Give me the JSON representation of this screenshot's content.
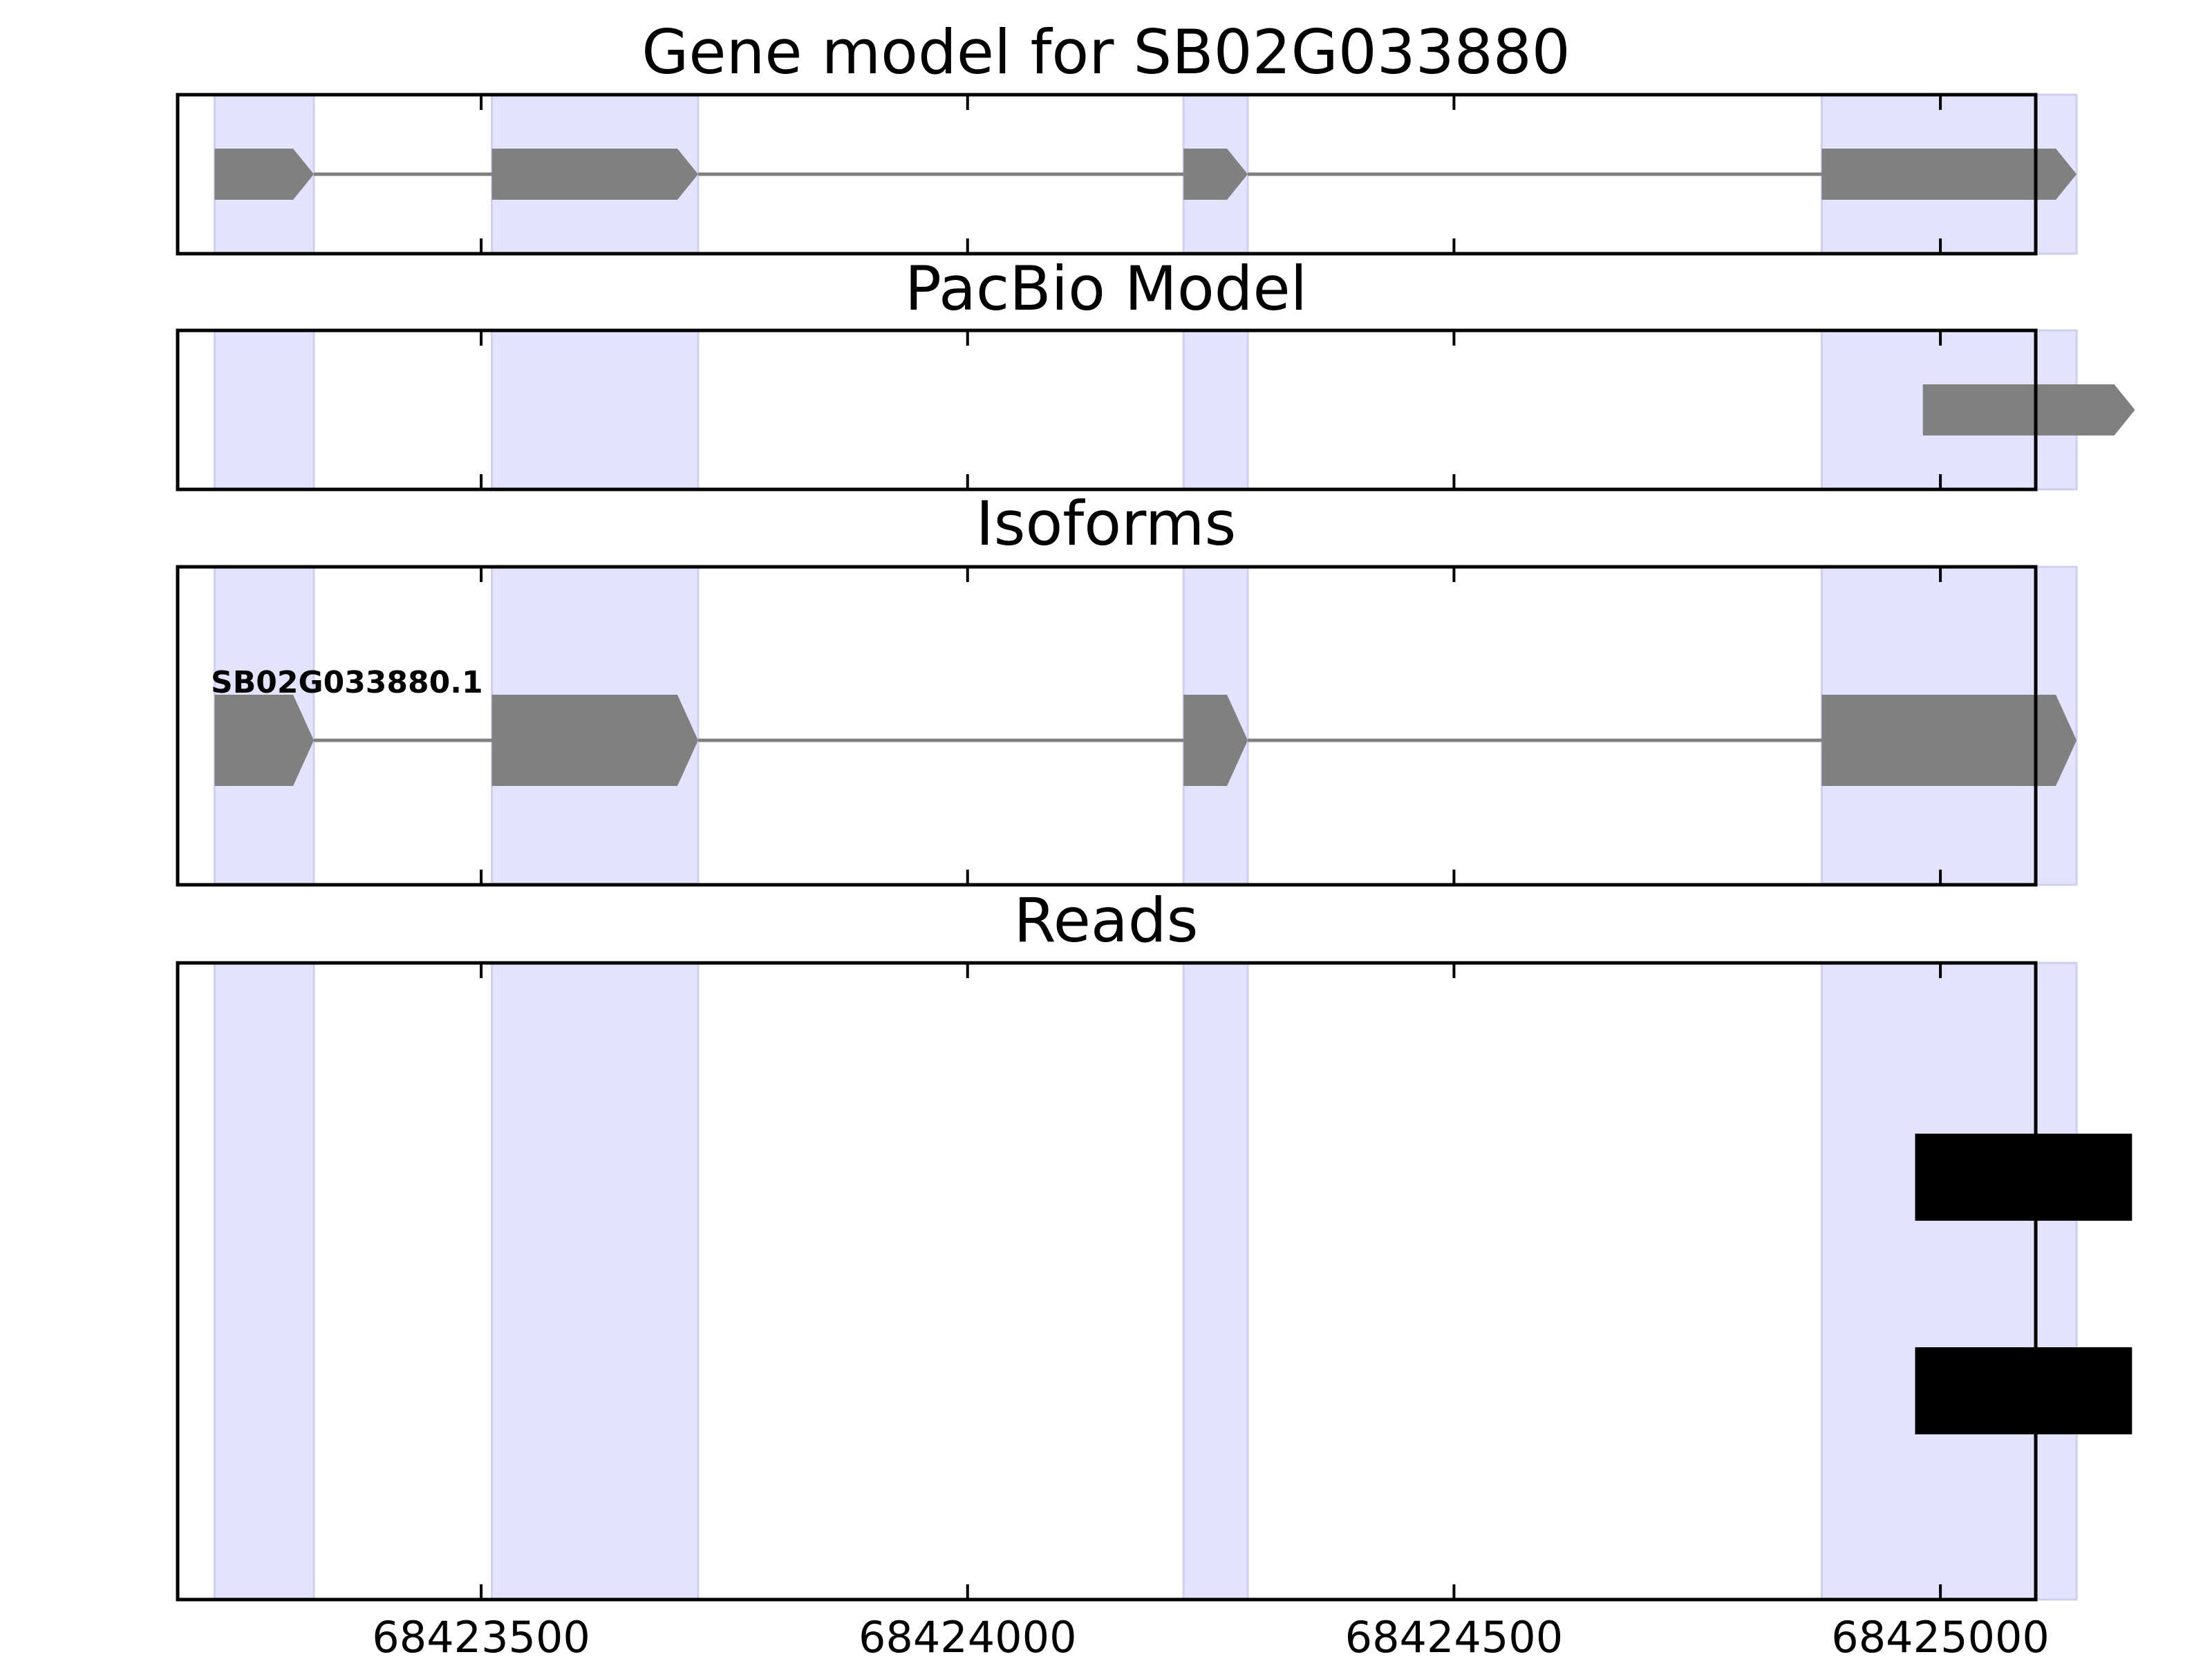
{
  "chart_data": {
    "type": "gene-track",
    "x_range": [
      68423188,
      68425098
    ],
    "x_ticks": [
      68423500,
      68424000,
      68424500,
      68425000
    ],
    "x_tick_labels": [
      "68423500",
      "68424000",
      "68424500",
      "68425000"
    ],
    "highlight_color": "#e3e3fd",
    "feature_color": "#808080",
    "read_color": "#000000",
    "highlight_regions": [
      [
        68423226,
        68423328
      ],
      [
        68423511,
        68423723
      ],
      [
        68424222,
        68424288
      ],
      [
        68424878,
        68425140
      ]
    ],
    "panels": [
      {
        "id": "gene-model",
        "title": "Gene model for SB02G033880",
        "features": [
          {
            "start": 68423226,
            "end": 68423328,
            "row": 0.5
          },
          {
            "start": 68423511,
            "end": 68423723,
            "row": 0.5
          },
          {
            "start": 68424222,
            "end": 68424288,
            "row": 0.5
          },
          {
            "start": 68424878,
            "end": 68425140,
            "row": 0.5
          }
        ],
        "strand": "+"
      },
      {
        "id": "pacbio-model",
        "title": "PacBio Model",
        "features": [
          {
            "start": 68424982,
            "end": 68425200,
            "row": 0.5
          }
        ],
        "strand": "+"
      },
      {
        "id": "isoforms",
        "title": "Isoforms",
        "isoforms": [
          {
            "name": "SB02G033880.1",
            "features": [
              {
                "start": 68423226,
                "end": 68423328
              },
              {
                "start": 68423511,
                "end": 68423723
              },
              {
                "start": 68424222,
                "end": 68424288
              },
              {
                "start": 68424878,
                "end": 68425140
              }
            ],
            "strand": "+"
          }
        ]
      },
      {
        "id": "reads",
        "title": "Reads",
        "reads": [
          {
            "start": 68424974,
            "end": 68425197
          },
          {
            "start": 68424974,
            "end": 68425197
          }
        ]
      }
    ]
  }
}
